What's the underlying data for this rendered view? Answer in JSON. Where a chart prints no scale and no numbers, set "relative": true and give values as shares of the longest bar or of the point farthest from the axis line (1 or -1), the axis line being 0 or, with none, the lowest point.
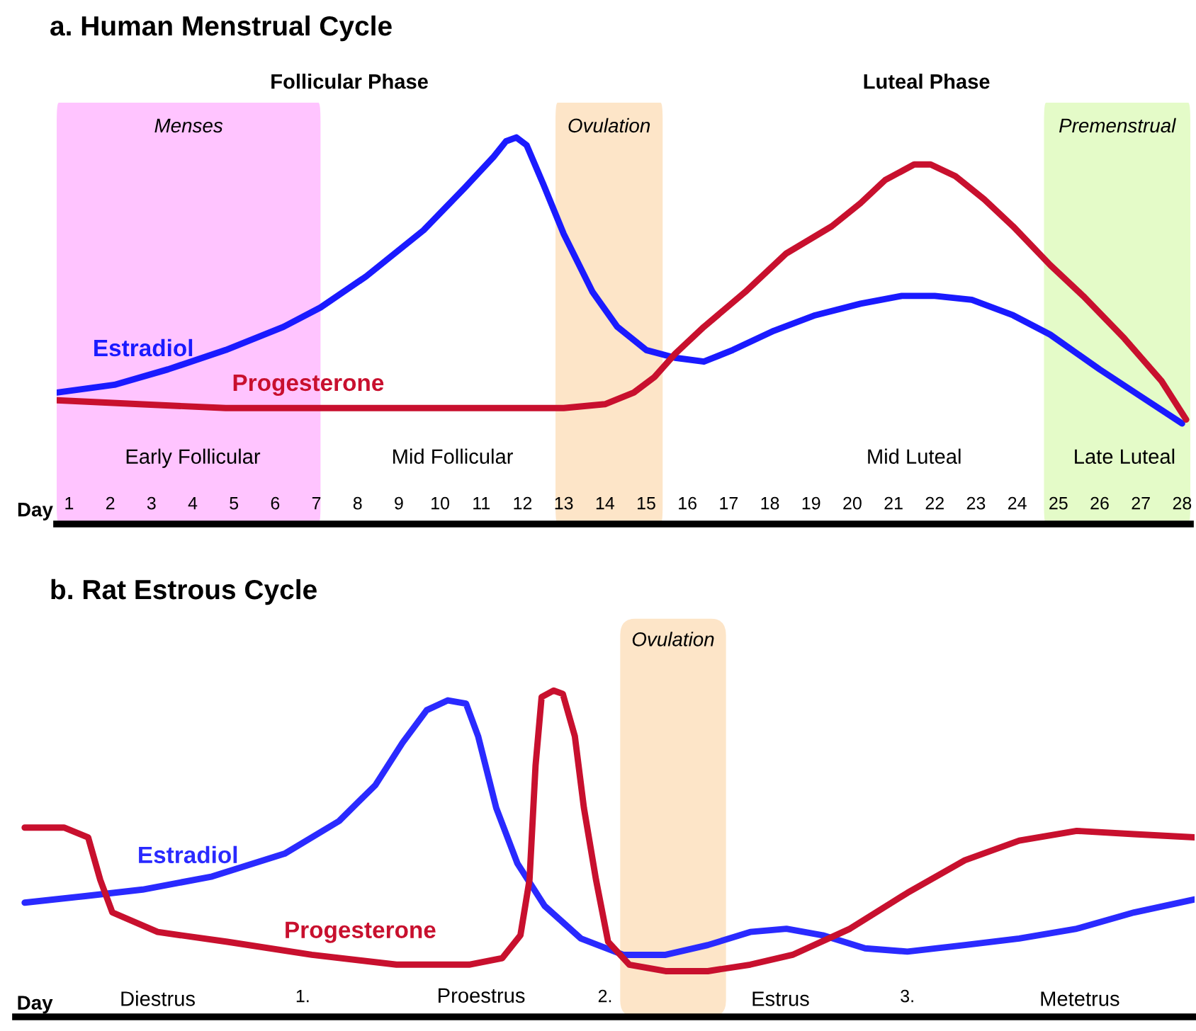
{
  "chart_data": [
    {
      "type": "line",
      "title": "a. Human Menstrual Cycle",
      "xlabel": "Day",
      "relative": true,
      "xlim": [
        0.7,
        28.2
      ],
      "xticks": [
        1,
        2,
        3,
        4,
        5,
        6,
        7,
        8,
        9,
        10,
        11,
        12,
        13,
        14,
        15,
        16,
        17,
        18,
        19,
        20,
        21,
        22,
        23,
        24,
        25,
        26,
        27,
        28
      ],
      "tick_labels": "x",
      "grid": false,
      "legend": false,
      "bands": [
        {
          "axis": "x",
          "from": 0.7,
          "to": 7.1,
          "label": "Menses",
          "color": "#ffc4ff"
        },
        {
          "axis": "x",
          "from": 12.8,
          "to": 15.4,
          "label": "Ovulation",
          "color": "#fde5c8"
        },
        {
          "axis": "x",
          "from": 24.65,
          "to": 28.2,
          "label": "Premenstrual",
          "color": "#e4fbc8"
        }
      ],
      "annotations": [
        "Follicular Phase",
        "Luteal Phase",
        "Early Follicular",
        "Mid Follicular",
        "Mid Luteal",
        "Late Luteal"
      ],
      "series": [
        {
          "name": "Estradiol",
          "color": "#1a1aff",
          "x": [
            0.7,
            2.1,
            3.4,
            4.8,
            6.2,
            7.1,
            8.2,
            9.6,
            10.6,
            11.3,
            11.6,
            11.85,
            12.1,
            12.5,
            13.0,
            13.7,
            14.3,
            15.0,
            15.7,
            16.4,
            17.1,
            18.1,
            19.1,
            20.2,
            21.2,
            22.0,
            22.9,
            23.9,
            24.8,
            26.0,
            27.0,
            28.0
          ],
          "values": [
            0.34,
            0.36,
            0.4,
            0.45,
            0.51,
            0.56,
            0.64,
            0.76,
            0.87,
            0.95,
            0.99,
            1.0,
            0.98,
            0.88,
            0.75,
            0.6,
            0.51,
            0.45,
            0.43,
            0.42,
            0.45,
            0.5,
            0.54,
            0.57,
            0.59,
            0.59,
            0.58,
            0.54,
            0.49,
            0.4,
            0.33,
            0.26
          ]
        },
        {
          "name": "Progesterone",
          "color": "#c8102e",
          "x": [
            0.7,
            2.7,
            4.8,
            7.1,
            9.6,
            11.6,
            13.0,
            14.0,
            14.7,
            15.2,
            15.7,
            16.4,
            17.4,
            18.4,
            19.5,
            20.2,
            20.8,
            21.5,
            21.9,
            22.5,
            23.2,
            23.9,
            24.8,
            25.6,
            26.6,
            27.5,
            28.1
          ],
          "values": [
            0.32,
            0.31,
            0.3,
            0.3,
            0.3,
            0.3,
            0.3,
            0.31,
            0.34,
            0.38,
            0.44,
            0.51,
            0.6,
            0.7,
            0.77,
            0.83,
            0.89,
            0.93,
            0.93,
            0.9,
            0.84,
            0.77,
            0.67,
            0.59,
            0.48,
            0.37,
            0.27
          ]
        }
      ]
    },
    {
      "type": "line",
      "title": "b. Rat Estrous Cycle",
      "xlabel": "Day",
      "relative": true,
      "xlim": [
        0.05,
        3.95
      ],
      "xticks": [
        {
          "value": 1,
          "label": "1."
        },
        {
          "value": 2,
          "label": "2."
        },
        {
          "value": 3,
          "label": "3."
        }
      ],
      "tick_labels": "x",
      "grid": false,
      "legend": false,
      "bands": [
        {
          "axis": "x",
          "from": 2.05,
          "to": 2.4,
          "label": "Ovulation",
          "color": "#fde5c8"
        }
      ],
      "annotations": [
        "Diestrus",
        "Proestrus",
        "Estrus",
        "Metetrus"
      ],
      "series": [
        {
          "name": "Estradiol",
          "color": "#2a2aff",
          "x": [
            0.08,
            0.28,
            0.47,
            0.7,
            0.94,
            1.12,
            1.24,
            1.33,
            1.41,
            1.48,
            1.54,
            1.58,
            1.64,
            1.71,
            1.8,
            1.92,
            2.06,
            2.2,
            2.34,
            2.48,
            2.6,
            2.72,
            2.86,
            3.0,
            3.19,
            3.37,
            3.56,
            3.75,
            3.95
          ],
          "values": [
            0.35,
            0.37,
            0.39,
            0.43,
            0.5,
            0.6,
            0.71,
            0.84,
            0.94,
            0.97,
            0.96,
            0.86,
            0.64,
            0.47,
            0.34,
            0.24,
            0.19,
            0.19,
            0.22,
            0.26,
            0.27,
            0.25,
            0.21,
            0.2,
            0.22,
            0.24,
            0.27,
            0.32,
            0.36
          ]
        },
        {
          "name": "Progesterone",
          "color": "#c8102e",
          "x": [
            0.08,
            0.21,
            0.29,
            0.33,
            0.37,
            0.52,
            0.75,
            1.03,
            1.31,
            1.55,
            1.66,
            1.72,
            1.75,
            1.77,
            1.79,
            1.83,
            1.86,
            1.9,
            1.93,
            1.97,
            2.01,
            2.08,
            2.2,
            2.34,
            2.48,
            2.62,
            2.81,
            3.0,
            3.19,
            3.37,
            3.56,
            3.75,
            3.95
          ],
          "values": [
            0.58,
            0.58,
            0.55,
            0.42,
            0.32,
            0.26,
            0.23,
            0.19,
            0.16,
            0.16,
            0.18,
            0.25,
            0.42,
            0.77,
            0.98,
            1.0,
            0.99,
            0.86,
            0.64,
            0.42,
            0.23,
            0.16,
            0.14,
            0.14,
            0.16,
            0.19,
            0.27,
            0.38,
            0.48,
            0.54,
            0.57,
            0.56,
            0.55
          ]
        }
      ]
    }
  ]
}
